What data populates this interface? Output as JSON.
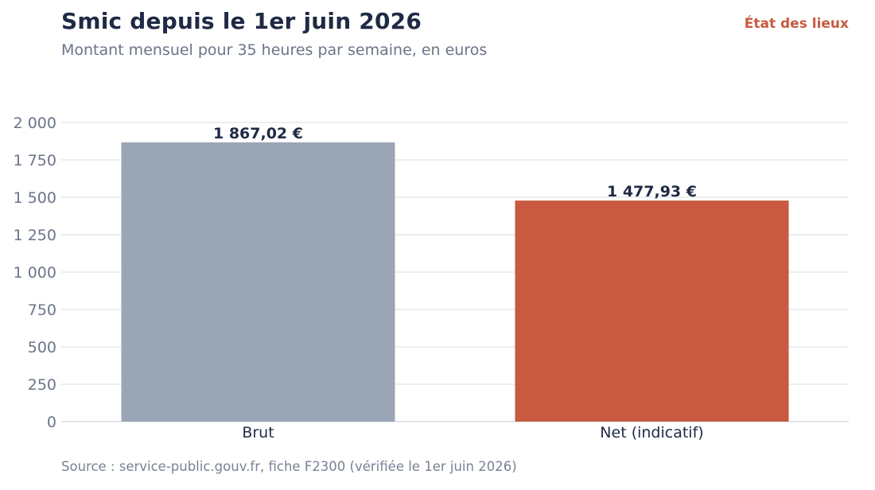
{
  "header": {
    "title": "Smic depuis le 1er juin 2026",
    "subtitle": "Montant mensuel pour 35 heures par semaine, en euros",
    "brand": "État des lieux"
  },
  "footer": {
    "source": "Source : service-public.gouv.fr, fiche F2300 (vérifiée le 1er juin 2026)"
  },
  "chart_data": {
    "type": "bar",
    "title": "Smic depuis le 1er juin 2026",
    "subtitle": "Montant mensuel pour 35 heures par semaine, en euros",
    "categories": [
      "Brut",
      "Net (indicatif)"
    ],
    "values": [
      1867.02,
      1477.93
    ],
    "data_labels": [
      "1 867,02 €",
      "1 477,93 €"
    ],
    "bar_colors": [
      "#9aa5b6",
      "#c75a40"
    ],
    "xlabel": "",
    "ylabel": "",
    "ylim": [
      0,
      2000
    ],
    "yticks": [
      0,
      250,
      500,
      750,
      1000,
      1250,
      1500,
      1750,
      2000
    ],
    "ytick_labels": [
      "0",
      "250",
      "500",
      "750",
      "1 000",
      "1 250",
      "1 500",
      "1 750",
      "2 000"
    ],
    "grid": true,
    "legend": "none"
  },
  "colors": {
    "title": "#1f2a44",
    "muted": "#6b7488",
    "accent": "#c75a40",
    "grid": "#e6e8ec"
  }
}
